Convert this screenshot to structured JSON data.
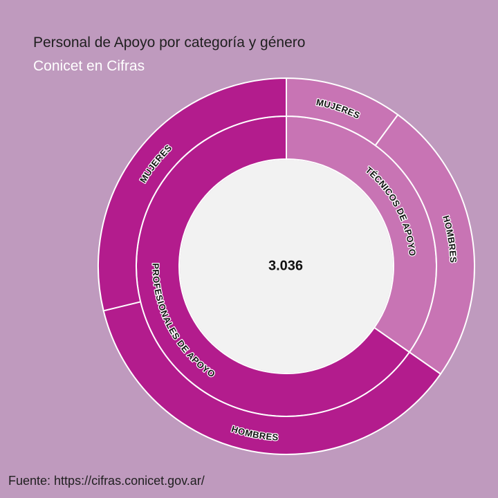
{
  "title": "Personal de Apoyo por categoría y género",
  "subtitle": "Conicet en Cifras",
  "source": "Fuente: https://cifras.conicet.gov.ar/",
  "colors": {
    "background": "#bf9abe",
    "profesionales": "#b31c8d",
    "tecnicos": "#c874b4",
    "center": "#f2f2f2",
    "separator": "#ffffff"
  },
  "chart_data": {
    "type": "sunburst",
    "total": 3036,
    "total_label": "3.036",
    "categories": [
      {
        "name": "PROFESIONALES DE APOYO",
        "share": 0.653,
        "children": [
          {
            "name": "MUJERES",
            "share": 0.288
          },
          {
            "name": "HOMBRES",
            "share": 0.365
          }
        ]
      },
      {
        "name": "TÉCNICOS DE APOYO",
        "share": 0.347,
        "children": [
          {
            "name": "MUJERES",
            "share": 0.101
          },
          {
            "name": "HOMBRES",
            "share": 0.246
          }
        ]
      }
    ]
  }
}
